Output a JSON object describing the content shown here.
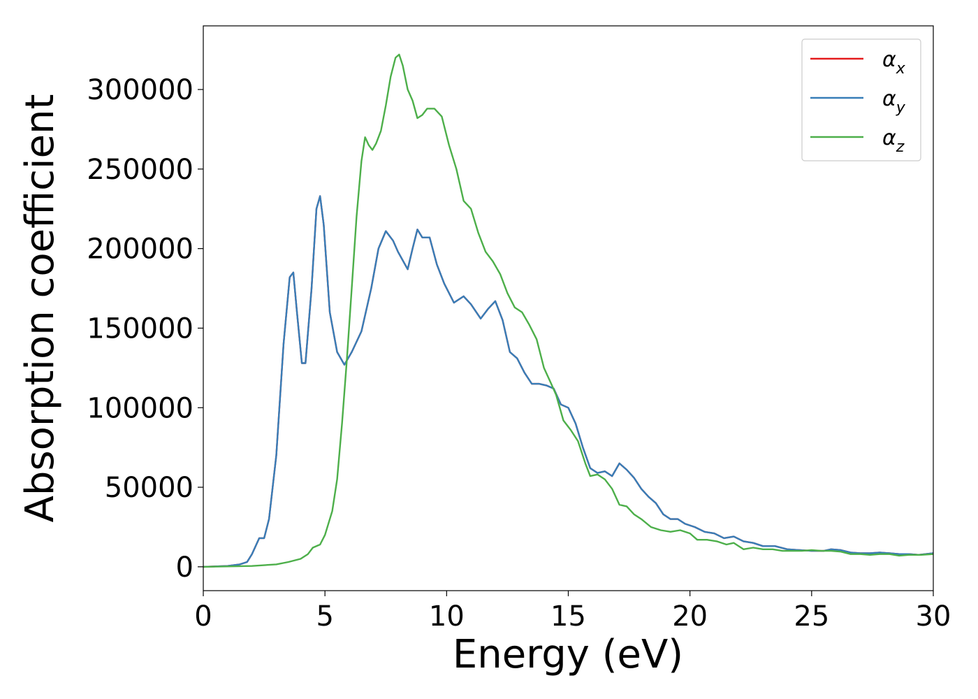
{
  "chart_data": {
    "type": "line",
    "title": "",
    "xlabel": "Energy (eV)",
    "ylabel": "Absorption coefficient",
    "xlim": [
      0,
      30
    ],
    "ylim": [
      -15000,
      340000
    ],
    "xticks": [
      0,
      5,
      10,
      15,
      20,
      25,
      30
    ],
    "xtick_labels": [
      "0",
      "5",
      "10",
      "15",
      "20",
      "25",
      "30"
    ],
    "yticks": [
      0,
      50000,
      100000,
      150000,
      200000,
      250000,
      300000
    ],
    "ytick_labels": [
      "0",
      "50000",
      "100000",
      "150000",
      "200000",
      "250000",
      "300000"
    ],
    "grid": false,
    "legend_position": "top-right",
    "legend": [
      {
        "symbol": "α",
        "subscript": "x",
        "color": "#e41a1c"
      },
      {
        "symbol": "α",
        "subscript": "y",
        "color": "#377eb8"
      },
      {
        "symbol": "α",
        "subscript": "z",
        "color": "#4daf4a"
      }
    ],
    "series": [
      {
        "name": "αx",
        "color": "#e41a1c",
        "points": [
          [
            0,
            0
          ],
          [
            1,
            500
          ],
          [
            1.5,
            1500
          ],
          [
            1.8,
            3000
          ],
          [
            2.0,
            8000
          ],
          [
            2.3,
            18000
          ],
          [
            2.5,
            18000
          ],
          [
            2.7,
            30000
          ],
          [
            3.0,
            70000
          ],
          [
            3.3,
            140000
          ],
          [
            3.55,
            182000
          ],
          [
            3.7,
            185000
          ],
          [
            3.85,
            160000
          ],
          [
            4.05,
            128000
          ],
          [
            4.2,
            128000
          ],
          [
            4.45,
            175000
          ],
          [
            4.65,
            225000
          ],
          [
            4.8,
            233000
          ],
          [
            4.95,
            215000
          ],
          [
            5.2,
            160000
          ],
          [
            5.5,
            135000
          ],
          [
            5.8,
            127000
          ],
          [
            6.1,
            135000
          ],
          [
            6.5,
            148000
          ],
          [
            6.9,
            175000
          ],
          [
            7.2,
            200000
          ],
          [
            7.5,
            211000
          ],
          [
            7.8,
            205000
          ],
          [
            8.0,
            198000
          ],
          [
            8.4,
            187000
          ],
          [
            8.6,
            200000
          ],
          [
            8.8,
            212000
          ],
          [
            9.0,
            207000
          ],
          [
            9.3,
            207000
          ],
          [
            9.6,
            190000
          ],
          [
            9.9,
            178000
          ],
          [
            10.3,
            166000
          ],
          [
            10.7,
            170000
          ],
          [
            11.0,
            165000
          ],
          [
            11.4,
            156000
          ],
          [
            11.7,
            162000
          ],
          [
            12.0,
            167000
          ],
          [
            12.3,
            155000
          ],
          [
            12.6,
            135000
          ],
          [
            12.9,
            131000
          ],
          [
            13.2,
            122000
          ],
          [
            13.5,
            115000
          ],
          [
            13.8,
            115000
          ],
          [
            14.1,
            114000
          ],
          [
            14.4,
            112000
          ],
          [
            14.7,
            102000
          ],
          [
            15.0,
            100000
          ],
          [
            15.3,
            90000
          ],
          [
            15.6,
            75000
          ],
          [
            15.9,
            62000
          ],
          [
            16.2,
            59000
          ],
          [
            16.5,
            60000
          ],
          [
            16.8,
            57000
          ],
          [
            17.1,
            65000
          ],
          [
            17.4,
            61000
          ],
          [
            17.7,
            56000
          ],
          [
            18.0,
            49000
          ],
          [
            18.3,
            44000
          ],
          [
            18.6,
            40000
          ],
          [
            18.9,
            33000
          ],
          [
            19.2,
            30000
          ],
          [
            19.5,
            30000
          ],
          [
            19.8,
            27000
          ],
          [
            20.2,
            25000
          ],
          [
            20.6,
            22000
          ],
          [
            21.0,
            21000
          ],
          [
            21.4,
            18000
          ],
          [
            21.8,
            19000
          ],
          [
            22.2,
            16000
          ],
          [
            22.6,
            15000
          ],
          [
            23.0,
            13000
          ],
          [
            23.5,
            13000
          ],
          [
            24.0,
            11000
          ],
          [
            24.5,
            10500
          ],
          [
            25.0,
            10000
          ],
          [
            25.5,
            10000
          ],
          [
            25.8,
            11000
          ],
          [
            26.2,
            10500
          ],
          [
            26.6,
            9000
          ],
          [
            27.0,
            8500
          ],
          [
            27.4,
            8500
          ],
          [
            27.8,
            9000
          ],
          [
            28.2,
            8500
          ],
          [
            28.6,
            8000
          ],
          [
            29.0,
            8000
          ],
          [
            29.4,
            7500
          ],
          [
            30.0,
            8500
          ]
        ]
      },
      {
        "name": "αy",
        "color": "#377eb8",
        "points": [
          [
            0,
            0
          ],
          [
            1,
            500
          ],
          [
            1.5,
            1500
          ],
          [
            1.8,
            3000
          ],
          [
            2.0,
            8000
          ],
          [
            2.3,
            18000
          ],
          [
            2.5,
            18000
          ],
          [
            2.7,
            30000
          ],
          [
            3.0,
            70000
          ],
          [
            3.3,
            140000
          ],
          [
            3.55,
            182000
          ],
          [
            3.7,
            185000
          ],
          [
            3.85,
            160000
          ],
          [
            4.05,
            128000
          ],
          [
            4.2,
            128000
          ],
          [
            4.45,
            175000
          ],
          [
            4.65,
            225000
          ],
          [
            4.8,
            233000
          ],
          [
            4.95,
            215000
          ],
          [
            5.2,
            160000
          ],
          [
            5.5,
            135000
          ],
          [
            5.8,
            127000
          ],
          [
            6.1,
            135000
          ],
          [
            6.5,
            148000
          ],
          [
            6.9,
            175000
          ],
          [
            7.2,
            200000
          ],
          [
            7.5,
            211000
          ],
          [
            7.8,
            205000
          ],
          [
            8.0,
            198000
          ],
          [
            8.4,
            187000
          ],
          [
            8.6,
            200000
          ],
          [
            8.8,
            212000
          ],
          [
            9.0,
            207000
          ],
          [
            9.3,
            207000
          ],
          [
            9.6,
            190000
          ],
          [
            9.9,
            178000
          ],
          [
            10.3,
            166000
          ],
          [
            10.7,
            170000
          ],
          [
            11.0,
            165000
          ],
          [
            11.4,
            156000
          ],
          [
            11.7,
            162000
          ],
          [
            12.0,
            167000
          ],
          [
            12.3,
            155000
          ],
          [
            12.6,
            135000
          ],
          [
            12.9,
            131000
          ],
          [
            13.2,
            122000
          ],
          [
            13.5,
            115000
          ],
          [
            13.8,
            115000
          ],
          [
            14.1,
            114000
          ],
          [
            14.4,
            112000
          ],
          [
            14.7,
            102000
          ],
          [
            15.0,
            100000
          ],
          [
            15.3,
            90000
          ],
          [
            15.6,
            75000
          ],
          [
            15.9,
            62000
          ],
          [
            16.2,
            59000
          ],
          [
            16.5,
            60000
          ],
          [
            16.8,
            57000
          ],
          [
            17.1,
            65000
          ],
          [
            17.4,
            61000
          ],
          [
            17.7,
            56000
          ],
          [
            18.0,
            49000
          ],
          [
            18.3,
            44000
          ],
          [
            18.6,
            40000
          ],
          [
            18.9,
            33000
          ],
          [
            19.2,
            30000
          ],
          [
            19.5,
            30000
          ],
          [
            19.8,
            27000
          ],
          [
            20.2,
            25000
          ],
          [
            20.6,
            22000
          ],
          [
            21.0,
            21000
          ],
          [
            21.4,
            18000
          ],
          [
            21.8,
            19000
          ],
          [
            22.2,
            16000
          ],
          [
            22.6,
            15000
          ],
          [
            23.0,
            13000
          ],
          [
            23.5,
            13000
          ],
          [
            24.0,
            11000
          ],
          [
            24.5,
            10500
          ],
          [
            25.0,
            10000
          ],
          [
            25.5,
            10000
          ],
          [
            25.8,
            11000
          ],
          [
            26.2,
            10500
          ],
          [
            26.6,
            9000
          ],
          [
            27.0,
            8500
          ],
          [
            27.4,
            8500
          ],
          [
            27.8,
            9000
          ],
          [
            28.2,
            8500
          ],
          [
            28.6,
            8000
          ],
          [
            29.0,
            8000
          ],
          [
            29.4,
            7500
          ],
          [
            30.0,
            8500
          ]
        ]
      },
      {
        "name": "αz",
        "color": "#4daf4a",
        "points": [
          [
            0,
            0
          ],
          [
            2,
            500
          ],
          [
            3,
            1500
          ],
          [
            3.5,
            3000
          ],
          [
            4.0,
            5000
          ],
          [
            4.3,
            8000
          ],
          [
            4.5,
            12000
          ],
          [
            4.8,
            14000
          ],
          [
            5.0,
            20000
          ],
          [
            5.3,
            35000
          ],
          [
            5.5,
            55000
          ],
          [
            5.7,
            90000
          ],
          [
            5.9,
            130000
          ],
          [
            6.1,
            175000
          ],
          [
            6.3,
            220000
          ],
          [
            6.5,
            255000
          ],
          [
            6.65,
            270000
          ],
          [
            6.8,
            265000
          ],
          [
            6.95,
            262000
          ],
          [
            7.1,
            266000
          ],
          [
            7.3,
            274000
          ],
          [
            7.5,
            290000
          ],
          [
            7.7,
            308000
          ],
          [
            7.9,
            320000
          ],
          [
            8.05,
            322000
          ],
          [
            8.2,
            315000
          ],
          [
            8.4,
            300000
          ],
          [
            8.6,
            293000
          ],
          [
            8.8,
            282000
          ],
          [
            9.0,
            284000
          ],
          [
            9.2,
            288000
          ],
          [
            9.5,
            288000
          ],
          [
            9.8,
            283000
          ],
          [
            10.1,
            265000
          ],
          [
            10.4,
            250000
          ],
          [
            10.7,
            230000
          ],
          [
            11.0,
            225000
          ],
          [
            11.3,
            210000
          ],
          [
            11.6,
            198000
          ],
          [
            11.9,
            192000
          ],
          [
            12.2,
            184000
          ],
          [
            12.5,
            172000
          ],
          [
            12.8,
            163000
          ],
          [
            13.1,
            160000
          ],
          [
            13.4,
            152000
          ],
          [
            13.7,
            143000
          ],
          [
            14.0,
            125000
          ],
          [
            14.3,
            115000
          ],
          [
            14.5,
            108000
          ],
          [
            14.8,
            92000
          ],
          [
            15.1,
            86000
          ],
          [
            15.4,
            79000
          ],
          [
            15.7,
            65000
          ],
          [
            15.9,
            57000
          ],
          [
            16.2,
            58000
          ],
          [
            16.5,
            55000
          ],
          [
            16.8,
            49000
          ],
          [
            17.1,
            39000
          ],
          [
            17.4,
            38000
          ],
          [
            17.7,
            33000
          ],
          [
            18.0,
            30000
          ],
          [
            18.4,
            25000
          ],
          [
            18.8,
            23000
          ],
          [
            19.2,
            22000
          ],
          [
            19.6,
            23000
          ],
          [
            20.0,
            21000
          ],
          [
            20.3,
            17000
          ],
          [
            20.7,
            17000
          ],
          [
            21.1,
            16000
          ],
          [
            21.5,
            14000
          ],
          [
            21.8,
            15000
          ],
          [
            22.2,
            11000
          ],
          [
            22.6,
            12000
          ],
          [
            23.0,
            11000
          ],
          [
            23.4,
            11000
          ],
          [
            23.8,
            10000
          ],
          [
            24.2,
            10000
          ],
          [
            24.6,
            10000
          ],
          [
            25.0,
            10500
          ],
          [
            25.4,
            10000
          ],
          [
            25.8,
            10000
          ],
          [
            26.2,
            9500
          ],
          [
            26.6,
            8000
          ],
          [
            27.0,
            8000
          ],
          [
            27.4,
            7500
          ],
          [
            27.8,
            8000
          ],
          [
            28.2,
            8000
          ],
          [
            28.6,
            7000
          ],
          [
            29.0,
            7500
          ],
          [
            29.5,
            7500
          ],
          [
            30.0,
            8000
          ]
        ]
      }
    ]
  }
}
